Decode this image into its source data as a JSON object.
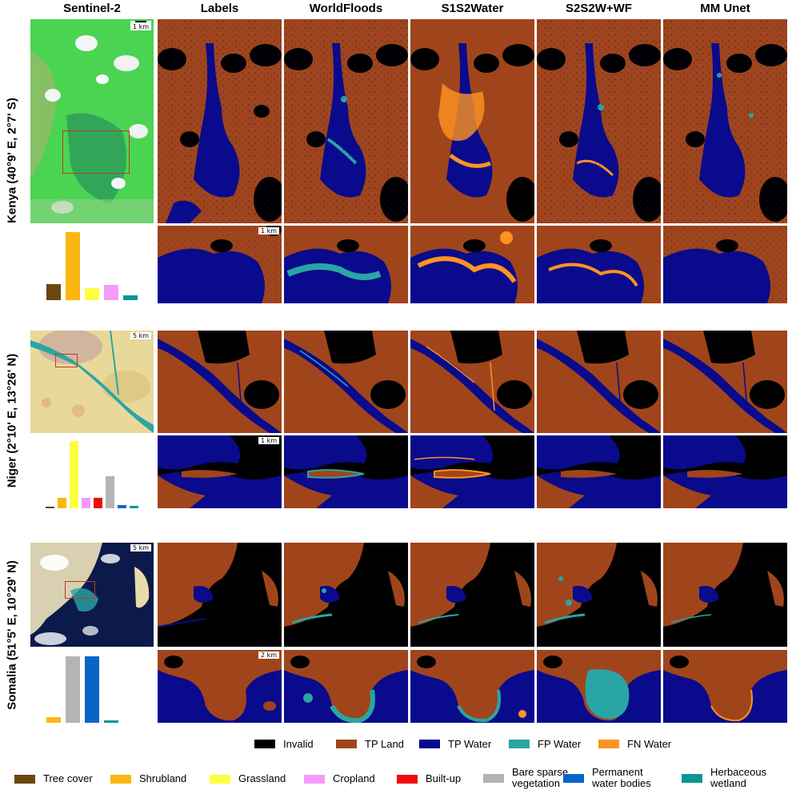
{
  "columns": [
    "Sentinel-2",
    "Labels",
    "WorldFloods",
    "S1S2Water",
    "S2S2W+WF",
    "MM Unet"
  ],
  "rows": [
    {
      "label": "Kenya (40°9' E, 2°7' S)",
      "overview_scale": "1 km",
      "zoom_scale": "1 km",
      "histogram": [
        {
          "class": "Tree cover",
          "value": 0.23
        },
        {
          "class": "Shrubland",
          "value": 0.98
        },
        {
          "class": "Grassland",
          "value": 0.17
        },
        {
          "class": "Cropland",
          "value": 0.22
        },
        {
          "class": "Herbaceous wetland",
          "value": 0.07
        }
      ]
    },
    {
      "label": "Niger (2°10' E, 13°26' N)",
      "overview_scale": "5 km",
      "zoom_scale": "1 km",
      "histogram": [
        {
          "class": "Tree cover",
          "value": 0.02
        },
        {
          "class": "Shrubland",
          "value": 0.15
        },
        {
          "class": "Grassland",
          "value": 1.0
        },
        {
          "class": "Cropland",
          "value": 0.16
        },
        {
          "class": "Built-up",
          "value": 0.15
        },
        {
          "class": "Bare sparse vegetation",
          "value": 0.48
        },
        {
          "class": "Permanent water bodies",
          "value": 0.05
        },
        {
          "class": "Herbaceous wetland",
          "value": 0.03
        }
      ]
    },
    {
      "label": "Somalia (51°5' E, 10°29' N)",
      "overview_scale": "5 km",
      "zoom_scale": "2 km",
      "histogram": [
        {
          "class": "Shrubland",
          "value": 0.08
        },
        {
          "class": "Bare sparse vegetation",
          "value": 0.98
        },
        {
          "class": "Permanent water bodies",
          "value": 0.98
        },
        {
          "class": "Herbaceous wetland",
          "value": 0.03
        }
      ]
    }
  ],
  "legend_prediction": [
    {
      "label": "Invalid",
      "color": "#000000"
    },
    {
      "label": "TP Land",
      "color": "#a0451b"
    },
    {
      "label": "TP Water",
      "color": "#0a0a8c"
    },
    {
      "label": "FP Water",
      "color": "#2aa5a5"
    },
    {
      "label": "FN Water",
      "color": "#ff9320"
    }
  ],
  "legend_landcover": [
    {
      "label": "Tree cover",
      "color": "#6b4610"
    },
    {
      "label": "Shrubland",
      "color": "#fbb612"
    },
    {
      "label": "Grassland",
      "color": "#fdfd43"
    },
    {
      "label": "Cropland",
      "color": "#f69afa"
    },
    {
      "label": "Built-up",
      "color": "#ed0b0b"
    },
    {
      "label": "Bare sparse\nvegetation",
      "color": "#b4b4b4"
    },
    {
      "label": "Permanent\nwater bodies",
      "color": "#0a64c8"
    },
    {
      "label": "Herbaceous\nwetland",
      "color": "#0a9696"
    }
  ]
}
